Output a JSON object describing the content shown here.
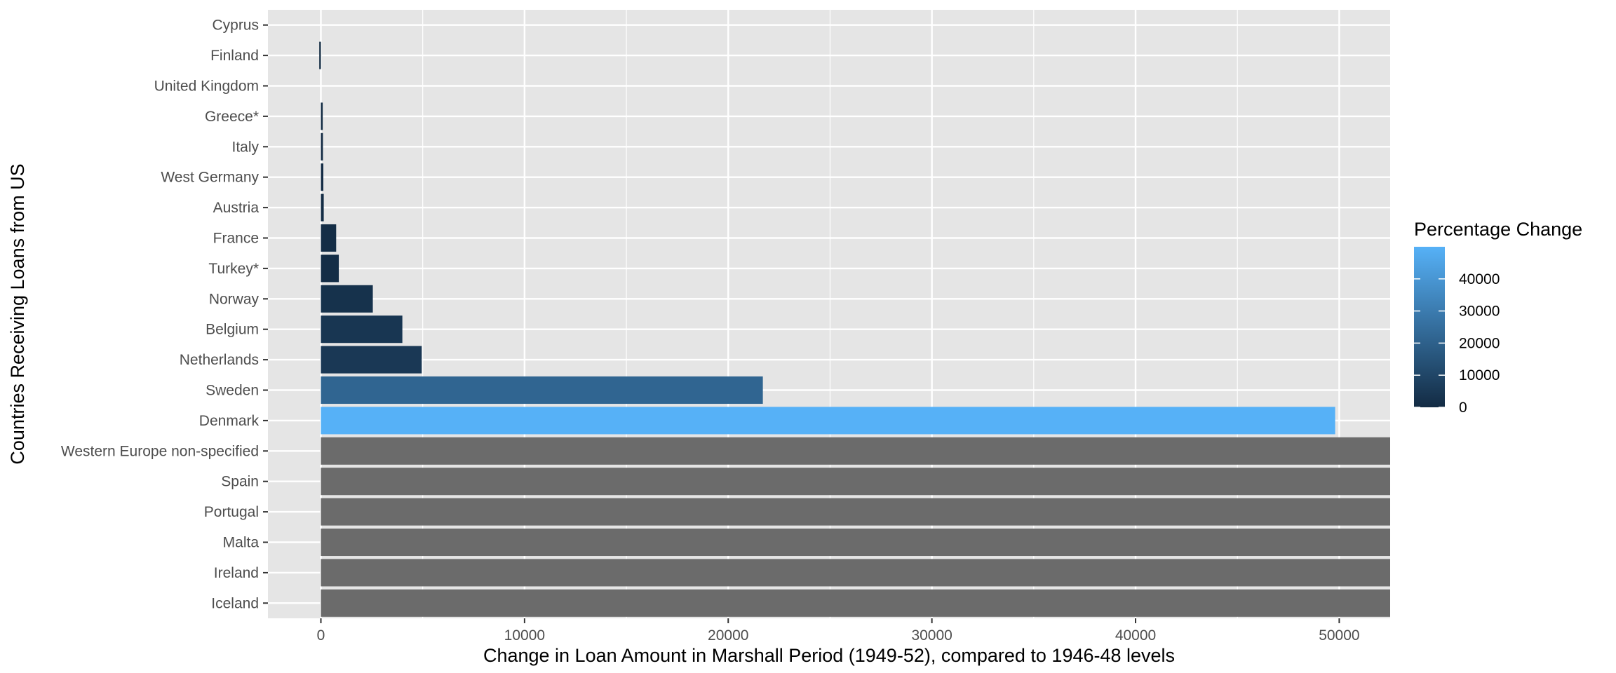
{
  "chart_data": {
    "type": "bar",
    "orientation": "horizontal",
    "title": "",
    "xlabel": "Change in Loan Amount in Marshall Period (1949-52), compared to 1946-48 levels",
    "ylabel": "Countries Receiving Loans from US",
    "xlim": [
      -2600,
      52500
    ],
    "x_ticks": [
      0,
      10000,
      20000,
      30000,
      40000,
      50000
    ],
    "x_tick_labels": [
      "0",
      "10000",
      "20000",
      "30000",
      "40000",
      "50000"
    ],
    "categories": [
      "Cyprus",
      "Finland",
      "United Kingdom",
      "Greece*",
      "Italy",
      "West Germany",
      "Austria",
      "France",
      "Turkey*",
      "Norway",
      "Belgium",
      "Netherlands",
      "Sweden",
      "Denmark",
      "Western Europe non-specified",
      "Spain",
      "Portugal",
      "Malta",
      "Ireland",
      "Iceland"
    ],
    "values": [
      0,
      -80,
      0,
      90,
      100,
      120,
      140,
      750,
      880,
      2550,
      4000,
      4950,
      21700,
      49800,
      52500,
      52500,
      52500,
      52500,
      52500,
      52500
    ],
    "fill_values": [
      null,
      0,
      null,
      300,
      400,
      500,
      600,
      800,
      900,
      2600,
      4100,
      5000,
      21800,
      50000,
      null,
      null,
      null,
      null,
      null,
      null
    ],
    "na_color": "#6b6b6b",
    "color_scale": {
      "low": "#132B43",
      "high": "#56B1F7",
      "min": 0,
      "max": 50000
    },
    "legend": {
      "title": "Percentage Change",
      "breaks": [
        0,
        10000,
        20000,
        30000,
        40000
      ],
      "labels": [
        "0",
        "10000",
        "20000",
        "30000",
        "40000"
      ],
      "position": "right"
    },
    "panel_background": "#e5e5e5",
    "grid": true
  }
}
